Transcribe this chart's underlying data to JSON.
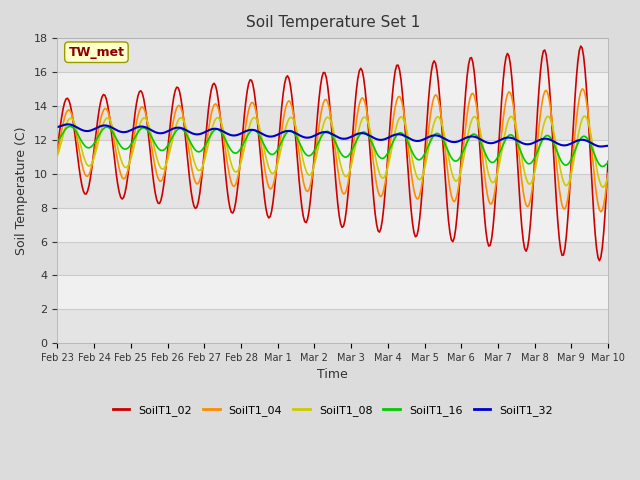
{
  "title": "Soil Temperature Set 1",
  "xlabel": "Time",
  "ylabel": "Soil Temperature (C)",
  "ylim": [
    0,
    18
  ],
  "yticks": [
    0,
    2,
    4,
    6,
    8,
    10,
    12,
    14,
    16,
    18
  ],
  "annotation_text": "TW_met",
  "annotation_color": "#8B0000",
  "annotation_bg": "#FFFFCC",
  "bg_color": "#DCDCDC",
  "plot_bg": "#F0F0F0",
  "series": {
    "SoilT1_02": {
      "color": "#CC0000",
      "linewidth": 1.2
    },
    "SoilT1_04": {
      "color": "#FF8C00",
      "linewidth": 1.2
    },
    "SoilT1_08": {
      "color": "#CCCC00",
      "linewidth": 1.2
    },
    "SoilT1_16": {
      "color": "#00CC00",
      "linewidth": 1.2
    },
    "SoilT1_32": {
      "color": "#0000CC",
      "linewidth": 1.5
    }
  },
  "date_labels": [
    "Feb 23",
    "Feb 24",
    "Feb 25",
    "Feb 26",
    "Feb 27",
    "Feb 28",
    "Mar 1",
    "Mar 2",
    "Mar 3",
    "Mar 4",
    "Mar 5",
    "Mar 6",
    "Mar 7",
    "Mar 8",
    "Mar 9",
    "Mar 10"
  ],
  "n_points": 384,
  "days": 15
}
